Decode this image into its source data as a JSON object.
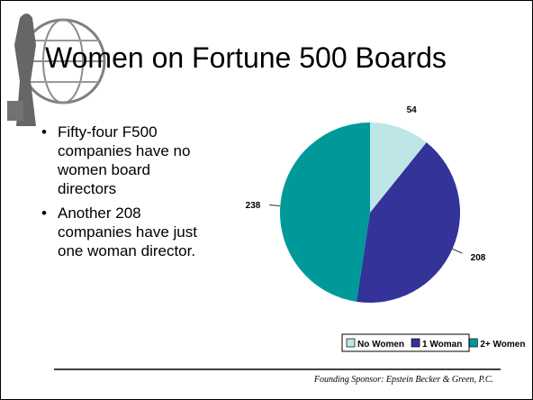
{
  "slide": {
    "title": "Women on Fortune 500 Boards",
    "bullets": [
      "Fifty-four F500 companies have no women board directors",
      "Another 208 companies have just one woman director."
    ],
    "footer": "Founding Sponsor:  Epstein Becker & Green, P.C."
  },
  "chart_data": {
    "type": "pie",
    "categories": [
      "No Women",
      "1 Woman",
      "2+ Women"
    ],
    "values": [
      54,
      208,
      238
    ],
    "colors": [
      "#bfe6e6",
      "#333399",
      "#009999"
    ]
  }
}
